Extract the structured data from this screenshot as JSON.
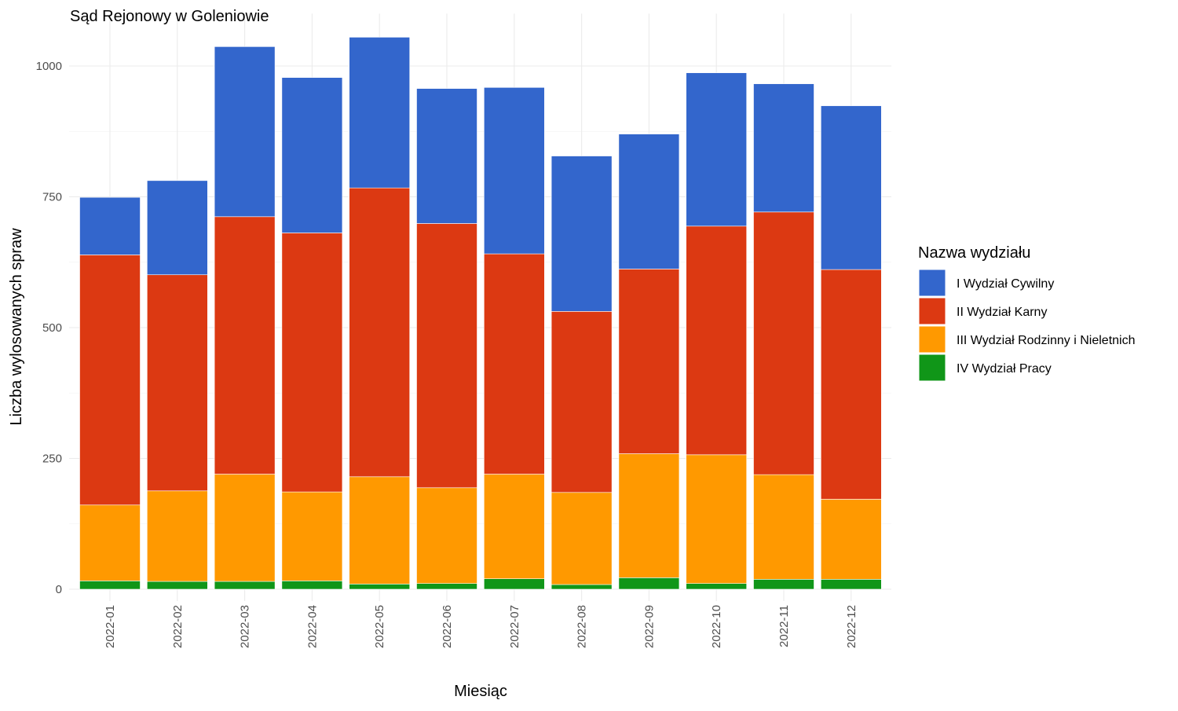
{
  "colors": {
    "I Wydział Cywilny": "#3366CC",
    "II Wydział Karny": "#DC3912",
    "III Wydział Rodzinny i Nieletnich": "#FF9900",
    "IV Wydział Pracy": "#109618"
  },
  "chart_data": {
    "type": "bar",
    "stacked": true,
    "title": "Sąd Rejonowy w Goleniowie",
    "xlabel": "Miesiąc",
    "ylabel": "Liczba wylosowanych spraw",
    "ylim": [
      0,
      1100
    ],
    "yticks": [
      0,
      250,
      500,
      750,
      1000
    ],
    "grid": true,
    "legend_title": "Nazwa wydziału",
    "legend_position": "right",
    "categories": [
      "2022-01",
      "2022-02",
      "2022-03",
      "2022-04",
      "2022-05",
      "2022-06",
      "2022-07",
      "2022-08",
      "2022-09",
      "2022-10",
      "2022-11",
      "2022-12"
    ],
    "series": [
      {
        "name": "I Wydział Cywilny",
        "values": [
          110,
          180,
          325,
          297,
          288,
          258,
          318,
          297,
          258,
          293,
          245,
          313
        ]
      },
      {
        "name": "II Wydział Karny",
        "values": [
          478,
          413,
          492,
          495,
          552,
          505,
          421,
          346,
          353,
          437,
          502,
          439
        ]
      },
      {
        "name": "III Wydział Rodzinny i Nieletnich",
        "values": [
          145,
          173,
          205,
          170,
          205,
          183,
          200,
          176,
          237,
          246,
          200,
          153
        ]
      },
      {
        "name": "IV Wydział Pracy",
        "values": [
          16,
          15,
          15,
          16,
          10,
          11,
          20,
          9,
          22,
          11,
          19,
          19
        ]
      }
    ]
  }
}
